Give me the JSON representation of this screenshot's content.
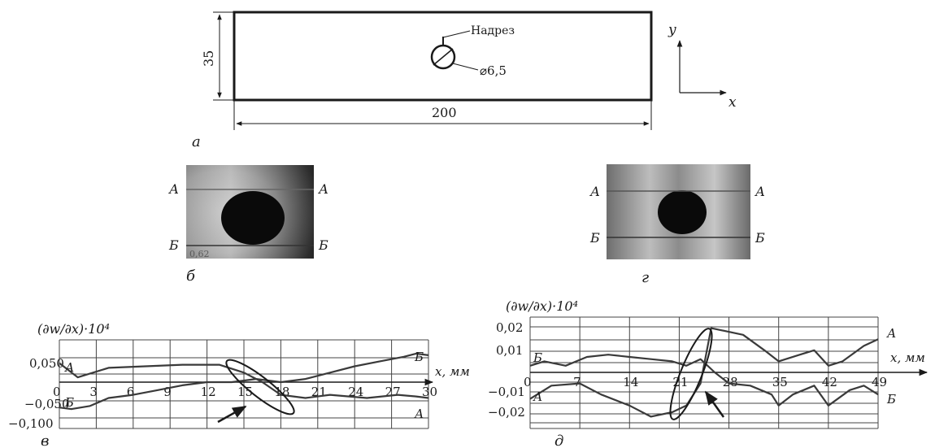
{
  "drawing": {
    "length_label": "200",
    "height_label": "35",
    "notch_label": "Надрез",
    "hole_label": "⌀6,5",
    "axis_y": "y",
    "axis_x": "x"
  },
  "panel_labels": {
    "a": "а",
    "b": "б",
    "v": "в",
    "g": "г",
    "d": "д"
  },
  "images": {
    "b": {
      "line_top": "А",
      "line_bottom": "Б",
      "corner_text": "0,62"
    },
    "g": {
      "line_top": "А",
      "line_bottom": "Б"
    }
  },
  "chart_data": [
    {
      "type": "line",
      "panel": "в",
      "ylabel": "(∂w/∂x)·10⁴",
      "xlabel": "x, мм",
      "x_ticks": [
        "0",
        "3",
        "6",
        "9",
        "12",
        "15",
        "18",
        "21",
        "24",
        "27",
        "30"
      ],
      "y_ticks": [
        "0,050",
        "−0,050",
        "−0,100"
      ],
      "xlim": [
        0,
        30
      ],
      "ylim": [
        -0.1,
        0.12
      ],
      "series": [
        {
          "name": "А",
          "x": [
            0,
            1.5,
            4,
            7,
            10,
            13,
            15,
            16.5,
            18,
            20,
            22,
            25,
            27.5,
            29,
            30
          ],
          "y": [
            0.06,
            0.015,
            0.045,
            0.05,
            0.055,
            0.055,
            0.03,
            0.0,
            -0.04,
            -0.05,
            -0.04,
            -0.05,
            -0.04,
            -0.045,
            -0.05
          ]
        },
        {
          "name": "Б",
          "x": [
            0,
            1,
            2.5,
            4,
            6,
            8,
            10,
            12,
            14,
            16,
            18,
            20,
            22,
            24,
            26,
            28,
            29,
            30
          ],
          "y": [
            -0.08,
            -0.085,
            -0.075,
            -0.05,
            -0.04,
            -0.025,
            -0.01,
            0.0,
            0.0,
            0.01,
            0.0,
            0.01,
            0.03,
            0.05,
            0.065,
            0.08,
            0.09,
            0.085
          ]
        }
      ],
      "annotation": "ellipse + arrow at x≈15–18"
    },
    {
      "type": "line",
      "panel": "д",
      "ylabel": "(∂w/∂x)·10⁴",
      "xlabel": "x, мм",
      "x_ticks": [
        "0",
        "7",
        "14",
        "21",
        "28",
        "35",
        "42",
        "49"
      ],
      "y_ticks": [
        "0,02",
        "0,01",
        "0",
        "−0,01",
        "−0,02"
      ],
      "xlim": [
        0,
        49
      ],
      "ylim": [
        -0.025,
        0.025
      ],
      "series": [
        {
          "name": "А",
          "x": [
            0,
            3,
            7,
            10,
            14,
            17,
            20,
            22,
            24,
            25.5,
            27,
            30,
            33,
            35,
            38,
            40,
            42,
            44,
            47,
            49
          ],
          "y": [
            -0.012,
            -0.006,
            -0.005,
            -0.01,
            -0.015,
            -0.02,
            -0.018,
            -0.015,
            -0.005,
            0.02,
            0.019,
            0.017,
            0.01,
            0.005,
            0.008,
            0.01,
            0.003,
            0.005,
            0.012,
            0.015
          ]
        },
        {
          "name": "Б",
          "x": [
            0,
            2,
            5,
            8,
            11,
            14,
            17,
            20,
            22,
            24,
            26,
            28,
            31,
            34,
            35,
            37,
            40,
            42,
            45,
            47,
            49
          ],
          "y": [
            0.003,
            0.005,
            0.003,
            0.007,
            0.008,
            0.007,
            0.006,
            0.005,
            0.003,
            0.006,
            0.0,
            -0.005,
            -0.006,
            -0.01,
            -0.015,
            -0.01,
            -0.006,
            -0.015,
            -0.008,
            -0.006,
            -0.01
          ]
        }
      ],
      "annotation": "ellipse + arrow at x≈21–25"
    }
  ]
}
